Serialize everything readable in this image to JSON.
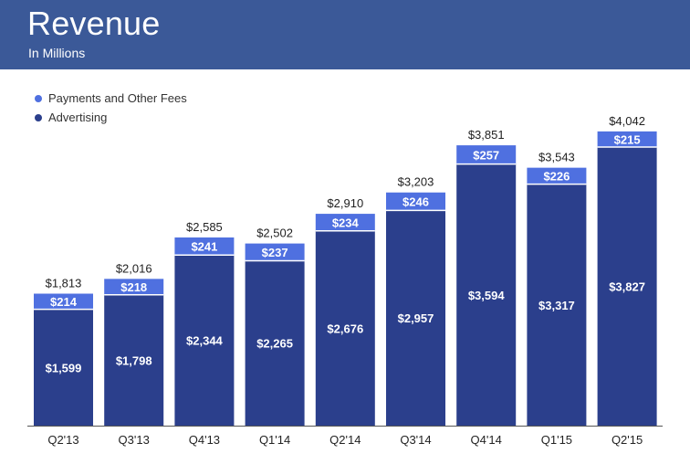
{
  "header": {
    "title": "Revenue",
    "subtitle": "In Millions"
  },
  "colors": {
    "header_bg": "#3b5998",
    "payments": "#4f70e0",
    "advertising": "#2b3f8c"
  },
  "chart_data": {
    "type": "bar",
    "stacked": true,
    "title": "Revenue",
    "subtitle": "In Millions",
    "xlabel": "",
    "ylabel": "",
    "ylim": [
      0,
      4200
    ],
    "legend_position": "top-left",
    "grid": false,
    "categories": [
      "Q2'13",
      "Q3'13",
      "Q4'13",
      "Q1'14",
      "Q2'14",
      "Q3'14",
      "Q4'14",
      "Q1'15",
      "Q2'15"
    ],
    "series": [
      {
        "name": "Advertising",
        "color": "#2b3f8c",
        "values": [
          1599,
          1798,
          2344,
          2265,
          2676,
          2957,
          3594,
          3317,
          3827
        ],
        "labels": [
          "$1,599",
          "$1,798",
          "$2,344",
          "$2,265",
          "$2,676",
          "$2,957",
          "$3,594",
          "$3,317",
          "$3,827"
        ]
      },
      {
        "name": "Payments and Other Fees",
        "color": "#4f70e0",
        "values": [
          214,
          218,
          241,
          237,
          234,
          246,
          257,
          226,
          215
        ],
        "labels": [
          "$214",
          "$218",
          "$241",
          "$237",
          "$234",
          "$246",
          "$257",
          "$226",
          "$215"
        ]
      }
    ],
    "totals": [
      1813,
      2016,
      2585,
      2502,
      2910,
      3203,
      3851,
      3543,
      4042
    ],
    "total_labels": [
      "$1,813",
      "$2,016",
      "$2,585",
      "$2,502",
      "$2,910",
      "$3,203",
      "$3,851",
      "$3,543",
      "$4,042"
    ]
  }
}
